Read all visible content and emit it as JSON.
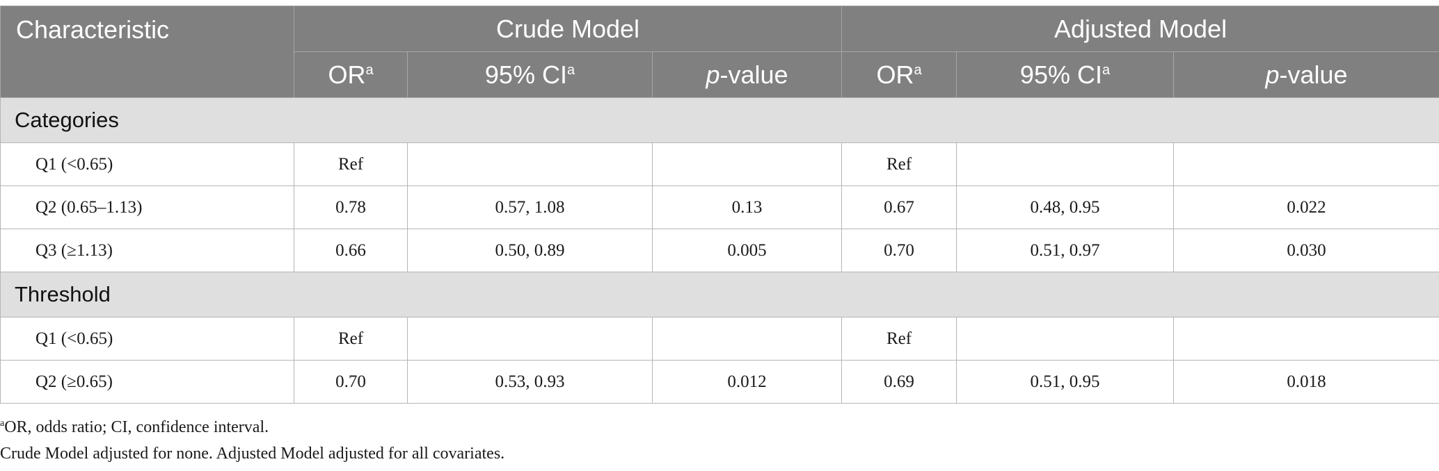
{
  "table": {
    "header": {
      "characteristic": "Characteristic",
      "crude_model": "Crude Model",
      "adjusted_model": "Adjusted Model",
      "or_label": "OR",
      "ci_label": "95% CI",
      "p_italic": "p",
      "p_rest": "-value",
      "footnote_mark": "a"
    },
    "sections": [
      {
        "title": "Categories",
        "rows": [
          {
            "label": "Q1 (<0.65)",
            "crude_or": "Ref",
            "crude_ci": "",
            "crude_p": "",
            "adj_or": "Ref",
            "adj_ci": "",
            "adj_p": ""
          },
          {
            "label": "Q2 (0.65–1.13)",
            "crude_or": "0.78",
            "crude_ci": "0.57, 1.08",
            "crude_p": "0.13",
            "adj_or": "0.67",
            "adj_ci": "0.48, 0.95",
            "adj_p": "0.022"
          },
          {
            "label": "Q3 (≥1.13)",
            "crude_or": "0.66",
            "crude_ci": "0.50, 0.89",
            "crude_p": "0.005",
            "adj_or": "0.70",
            "adj_ci": "0.51, 0.97",
            "adj_p": "0.030"
          }
        ]
      },
      {
        "title": "Threshold",
        "rows": [
          {
            "label": "Q1 (<0.65)",
            "crude_or": "Ref",
            "crude_ci": "",
            "crude_p": "",
            "adj_or": "Ref",
            "adj_ci": "",
            "adj_p": ""
          },
          {
            "label": "Q2 (≥0.65)",
            "crude_or": "0.70",
            "crude_ci": "0.53, 0.93",
            "crude_p": "0.012",
            "adj_or": "0.69",
            "adj_ci": "0.51, 0.95",
            "adj_p": "0.018"
          }
        ]
      }
    ]
  },
  "footnotes": {
    "mark": "a",
    "abbrev": "OR, odds ratio; CI, confidence interval.",
    "models": "Crude Model adjusted for none. Adjusted Model adjusted for all covariates."
  }
}
